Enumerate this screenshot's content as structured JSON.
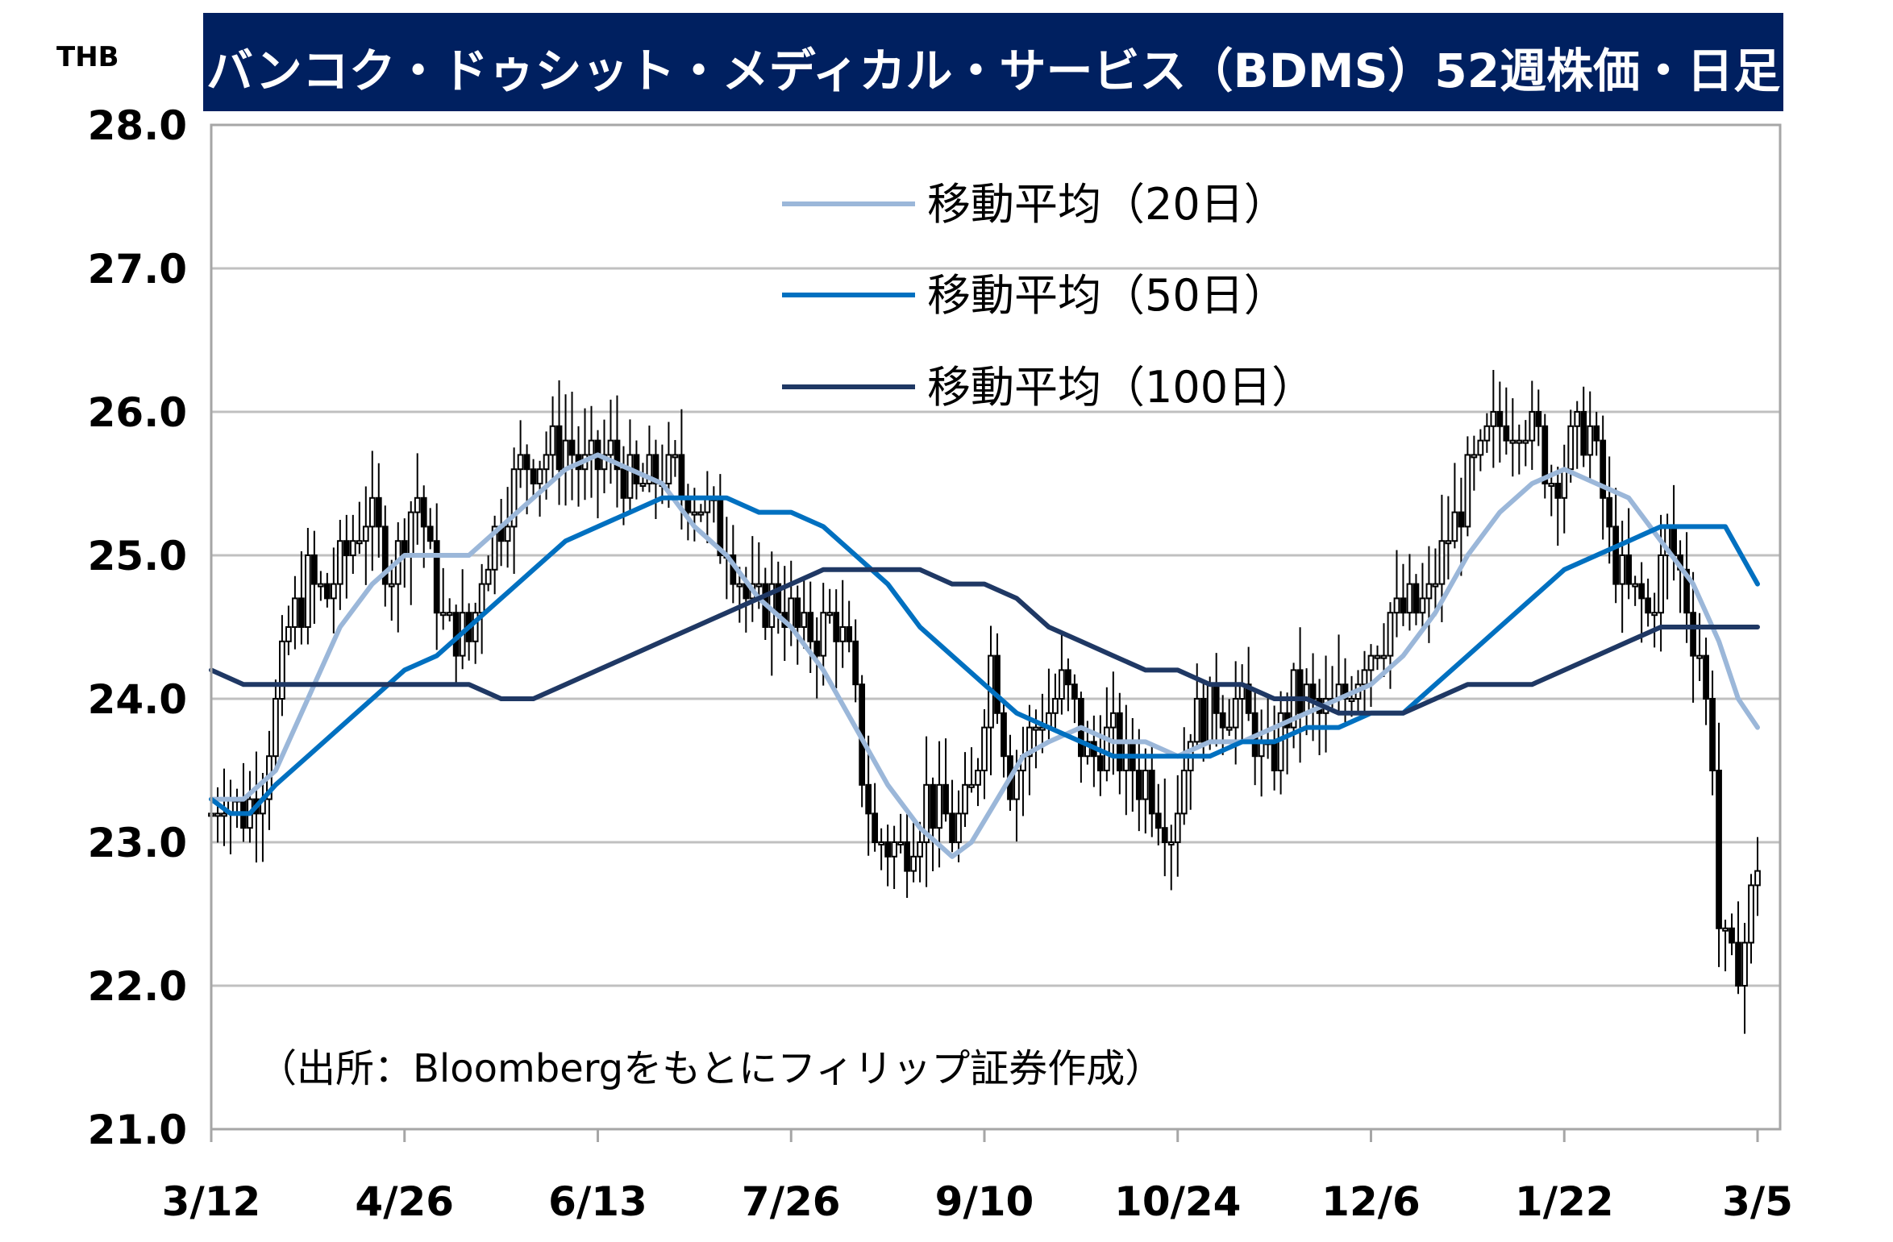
{
  "chart_data": {
    "type": "candlestick",
    "title": "バンコク・ドゥシット・メディカル・サービス（BDMS）52週株価・日足",
    "ylabel": "THB",
    "ylim": [
      21.0,
      28.0
    ],
    "yticks": [
      "21.0",
      "22.0",
      "23.0",
      "24.0",
      "25.0",
      "26.0",
      "27.0",
      "28.0"
    ],
    "yticks_values": [
      21.0,
      22.0,
      23.0,
      24.0,
      25.0,
      26.0,
      27.0,
      28.0
    ],
    "xtick_labels": [
      "3/12",
      "4/26",
      "6/13",
      "7/26",
      "9/10",
      "10/24",
      "12/6",
      "1/22",
      "3/5"
    ],
    "xtick_index": [
      0,
      30,
      60,
      90,
      120,
      150,
      180,
      210,
      240
    ],
    "bar_count": 241,
    "grid": true,
    "legend_position": "top-center",
    "source": "（出所：Bloombergをもとにフィリップ証券作成）",
    "price_path": [
      [
        0,
        23.2
      ],
      [
        2,
        23.4
      ],
      [
        5,
        23.2
      ],
      [
        8,
        23.5
      ],
      [
        10,
        23.9
      ],
      [
        12,
        24.5
      ],
      [
        15,
        24.8
      ],
      [
        18,
        24.7
      ],
      [
        20,
        24.9
      ],
      [
        24,
        25.3
      ],
      [
        28,
        24.9
      ],
      [
        32,
        25.4
      ],
      [
        36,
        24.5
      ],
      [
        40,
        24.4
      ],
      [
        42,
        24.9
      ],
      [
        45,
        25.3
      ],
      [
        48,
        25.6
      ],
      [
        52,
        25.7
      ],
      [
        55,
        25.8
      ],
      [
        58,
        25.6
      ],
      [
        62,
        25.7
      ],
      [
        66,
        25.4
      ],
      [
        70,
        25.6
      ],
      [
        75,
        25.4
      ],
      [
        80,
        25.1
      ],
      [
        84,
        24.6
      ],
      [
        88,
        24.7
      ],
      [
        92,
        24.4
      ],
      [
        96,
        24.6
      ],
      [
        99,
        24.3
      ],
      [
        101,
        23.5
      ],
      [
        103,
        23.0
      ],
      [
        107,
        22.9
      ],
      [
        111,
        23.3
      ],
      [
        115,
        23.1
      ],
      [
        118,
        23.3
      ],
      [
        121,
        24.3
      ],
      [
        124,
        23.5
      ],
      [
        128,
        23.8
      ],
      [
        132,
        24.1
      ],
      [
        136,
        23.6
      ],
      [
        140,
        23.7
      ],
      [
        143,
        23.5
      ],
      [
        146,
        23.4
      ],
      [
        149,
        23.1
      ],
      [
        152,
        23.8
      ],
      [
        156,
        24.0
      ],
      [
        160,
        23.9
      ],
      [
        164,
        23.5
      ],
      [
        168,
        24.0
      ],
      [
        172,
        23.9
      ],
      [
        176,
        24.0
      ],
      [
        180,
        24.4
      ],
      [
        184,
        24.6
      ],
      [
        188,
        24.6
      ],
      [
        192,
        25.1
      ],
      [
        196,
        25.6
      ],
      [
        200,
        25.9
      ],
      [
        204,
        26.0
      ],
      [
        208,
        25.5
      ],
      [
        211,
        25.8
      ],
      [
        214,
        25.9
      ],
      [
        217,
        25.1
      ],
      [
        220,
        24.7
      ],
      [
        223,
        24.6
      ],
      [
        226,
        25.1
      ],
      [
        229,
        24.7
      ],
      [
        231,
        24.3
      ],
      [
        233,
        23.6
      ],
      [
        234,
        22.4
      ],
      [
        236,
        22.1
      ],
      [
        238,
        22.3
      ],
      [
        240,
        22.9
      ]
    ],
    "series": [
      {
        "name": "移動平均（20日）",
        "color": "#9bb7d9",
        "values": [
          [
            0,
            23.3
          ],
          [
            5,
            23.3
          ],
          [
            10,
            23.5
          ],
          [
            15,
            24.0
          ],
          [
            20,
            24.5
          ],
          [
            25,
            24.8
          ],
          [
            30,
            25.0
          ],
          [
            35,
            25.0
          ],
          [
            40,
            25.0
          ],
          [
            45,
            25.2
          ],
          [
            50,
            25.4
          ],
          [
            55,
            25.6
          ],
          [
            60,
            25.7
          ],
          [
            65,
            25.6
          ],
          [
            70,
            25.5
          ],
          [
            75,
            25.2
          ],
          [
            80,
            25.0
          ],
          [
            85,
            24.7
          ],
          [
            90,
            24.5
          ],
          [
            95,
            24.2
          ],
          [
            100,
            23.8
          ],
          [
            105,
            23.4
          ],
          [
            110,
            23.1
          ],
          [
            115,
            22.9
          ],
          [
            118,
            23.0
          ],
          [
            122,
            23.3
          ],
          [
            126,
            23.6
          ],
          [
            130,
            23.7
          ],
          [
            135,
            23.8
          ],
          [
            140,
            23.7
          ],
          [
            145,
            23.7
          ],
          [
            150,
            23.6
          ],
          [
            155,
            23.7
          ],
          [
            160,
            23.7
          ],
          [
            165,
            23.8
          ],
          [
            170,
            23.9
          ],
          [
            175,
            24.0
          ],
          [
            180,
            24.1
          ],
          [
            185,
            24.3
          ],
          [
            190,
            24.6
          ],
          [
            195,
            25.0
          ],
          [
            200,
            25.3
          ],
          [
            205,
            25.5
          ],
          [
            210,
            25.6
          ],
          [
            215,
            25.5
          ],
          [
            220,
            25.4
          ],
          [
            225,
            25.1
          ],
          [
            230,
            24.8
          ],
          [
            234,
            24.4
          ],
          [
            237,
            24.0
          ],
          [
            240,
            23.8
          ]
        ]
      },
      {
        "name": "移動平均（50日）",
        "color": "#0070c0",
        "values": [
          [
            0,
            23.3
          ],
          [
            3,
            23.2
          ],
          [
            6,
            23.2
          ],
          [
            10,
            23.4
          ],
          [
            15,
            23.6
          ],
          [
            20,
            23.8
          ],
          [
            25,
            24.0
          ],
          [
            30,
            24.2
          ],
          [
            35,
            24.3
          ],
          [
            40,
            24.5
          ],
          [
            45,
            24.7
          ],
          [
            50,
            24.9
          ],
          [
            55,
            25.1
          ],
          [
            60,
            25.2
          ],
          [
            65,
            25.3
          ],
          [
            70,
            25.4
          ],
          [
            75,
            25.4
          ],
          [
            80,
            25.4
          ],
          [
            85,
            25.3
          ],
          [
            90,
            25.3
          ],
          [
            95,
            25.2
          ],
          [
            100,
            25.0
          ],
          [
            105,
            24.8
          ],
          [
            110,
            24.5
          ],
          [
            115,
            24.3
          ],
          [
            120,
            24.1
          ],
          [
            125,
            23.9
          ],
          [
            130,
            23.8
          ],
          [
            135,
            23.7
          ],
          [
            140,
            23.6
          ],
          [
            145,
            23.6
          ],
          [
            150,
            23.6
          ],
          [
            155,
            23.6
          ],
          [
            160,
            23.7
          ],
          [
            165,
            23.7
          ],
          [
            170,
            23.8
          ],
          [
            175,
            23.8
          ],
          [
            180,
            23.9
          ],
          [
            185,
            23.9
          ],
          [
            190,
            24.1
          ],
          [
            195,
            24.3
          ],
          [
            200,
            24.5
          ],
          [
            205,
            24.7
          ],
          [
            210,
            24.9
          ],
          [
            215,
            25.0
          ],
          [
            220,
            25.1
          ],
          [
            225,
            25.2
          ],
          [
            230,
            25.2
          ],
          [
            235,
            25.2
          ],
          [
            240,
            24.8
          ]
        ]
      },
      {
        "name": "移動平均（100日）",
        "color": "#1f3864",
        "values": [
          [
            0,
            24.2
          ],
          [
            5,
            24.1
          ],
          [
            10,
            24.1
          ],
          [
            15,
            24.1
          ],
          [
            20,
            24.1
          ],
          [
            25,
            24.1
          ],
          [
            30,
            24.1
          ],
          [
            35,
            24.1
          ],
          [
            40,
            24.1
          ],
          [
            45,
            24.0
          ],
          [
            50,
            24.0
          ],
          [
            55,
            24.1
          ],
          [
            60,
            24.2
          ],
          [
            65,
            24.3
          ],
          [
            70,
            24.4
          ],
          [
            75,
            24.5
          ],
          [
            80,
            24.6
          ],
          [
            85,
            24.7
          ],
          [
            90,
            24.8
          ],
          [
            95,
            24.9
          ],
          [
            100,
            24.9
          ],
          [
            105,
            24.9
          ],
          [
            110,
            24.9
          ],
          [
            115,
            24.8
          ],
          [
            120,
            24.8
          ],
          [
            125,
            24.7
          ],
          [
            130,
            24.5
          ],
          [
            135,
            24.4
          ],
          [
            140,
            24.3
          ],
          [
            145,
            24.2
          ],
          [
            150,
            24.2
          ],
          [
            155,
            24.1
          ],
          [
            160,
            24.1
          ],
          [
            165,
            24.0
          ],
          [
            170,
            24.0
          ],
          [
            175,
            23.9
          ],
          [
            180,
            23.9
          ],
          [
            185,
            23.9
          ],
          [
            190,
            24.0
          ],
          [
            195,
            24.1
          ],
          [
            200,
            24.1
          ],
          [
            205,
            24.1
          ],
          [
            210,
            24.2
          ],
          [
            215,
            24.3
          ],
          [
            220,
            24.4
          ],
          [
            225,
            24.5
          ],
          [
            230,
            24.5
          ],
          [
            235,
            24.5
          ],
          [
            240,
            24.5
          ]
        ]
      }
    ]
  },
  "colors": {
    "title_bg": "#002060",
    "title_fg": "#ffffff",
    "grid": "#c0c0c0",
    "frame": "#a6a6a6",
    "up_body": "#ffffff",
    "down_body": "#000000",
    "wick": "#000000"
  }
}
